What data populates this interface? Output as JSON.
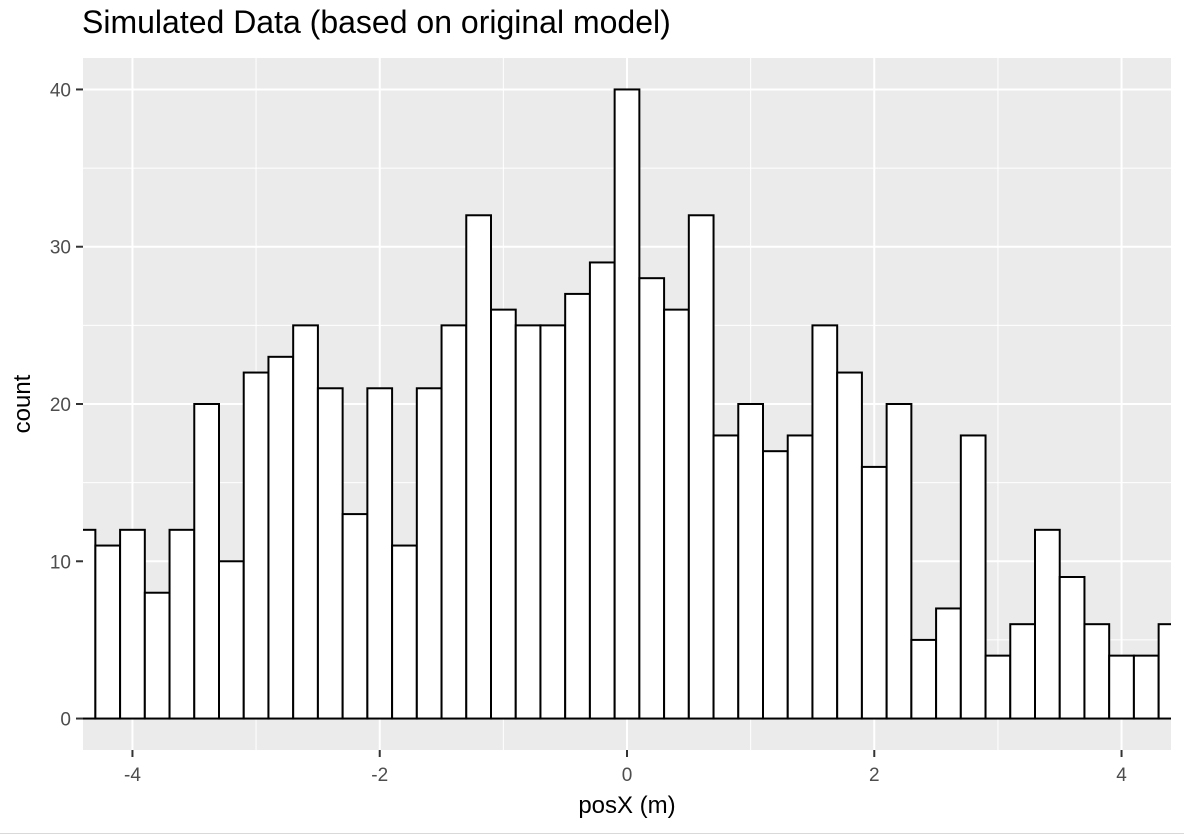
{
  "chart_data": {
    "type": "bar",
    "title": "Simulated Data (based on original model)",
    "xlabel": "posX (m)",
    "ylabel": "count",
    "xlim": [
      -4.4,
      4.4
    ],
    "ylim": [
      -2,
      42
    ],
    "x_ticks": [
      "-4",
      "-2",
      "0",
      "2",
      "4"
    ],
    "x_tick_values": [
      -4,
      -2,
      0,
      2,
      4
    ],
    "y_ticks": [
      "0",
      "10",
      "20",
      "30",
      "40"
    ],
    "y_tick_values": [
      0,
      10,
      20,
      30,
      40
    ],
    "grid": true,
    "bin_width": 0.2,
    "bin_centers": [
      -4.4,
      -4.2,
      -4.0,
      -3.8,
      -3.6,
      -3.4,
      -3.2,
      -3.0,
      -2.8,
      -2.6,
      -2.4,
      -2.2,
      -2.0,
      -1.8,
      -1.6,
      -1.4,
      -1.2,
      -1.0,
      -0.8,
      -0.6,
      -0.4,
      -0.2,
      0.0,
      0.2,
      0.4,
      0.6,
      0.8,
      1.0,
      1.2,
      1.4,
      1.6,
      1.8,
      2.0,
      2.2,
      2.4,
      2.6,
      2.8,
      3.0,
      3.2,
      3.4,
      3.6,
      3.8,
      4.0,
      4.2,
      4.4
    ],
    "values": [
      12,
      11,
      12,
      8,
      12,
      20,
      10,
      22,
      23,
      25,
      21,
      13,
      21,
      11,
      21,
      25,
      32,
      26,
      25,
      25,
      27,
      29,
      40,
      28,
      26,
      32,
      18,
      20,
      17,
      18,
      25,
      22,
      16,
      20,
      5,
      7,
      18,
      4,
      6,
      12,
      9,
      6,
      4,
      4,
      6
    ],
    "colors": {
      "panel_background": "#ebebeb",
      "grid": "#ffffff",
      "bar_fill": "#ffffff",
      "bar_outline": "#000000",
      "tick_label": "#4d4d4d"
    }
  }
}
